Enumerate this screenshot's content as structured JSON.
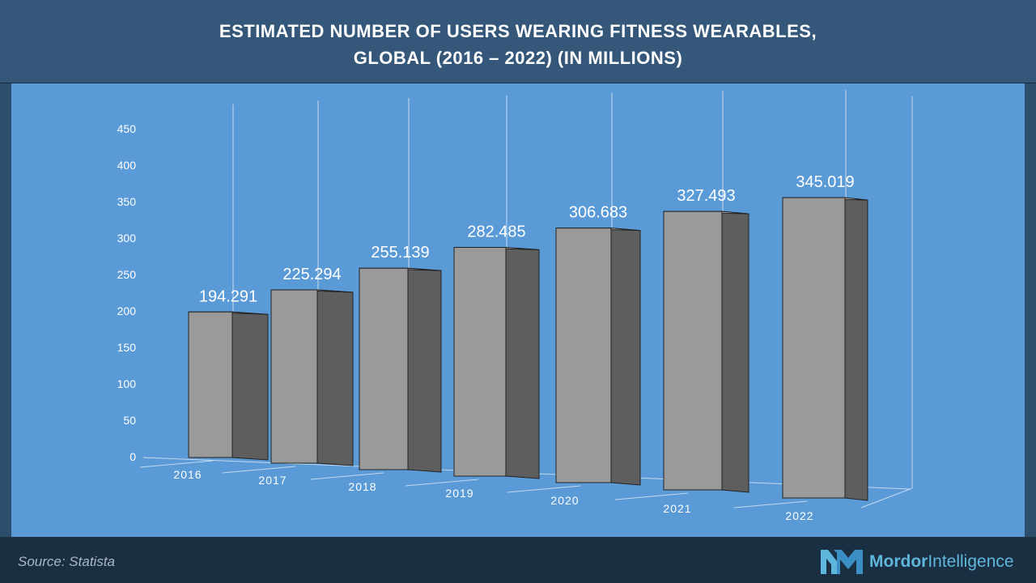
{
  "title": {
    "line1": "ESTIMATED NUMBER OF USERS WEARING FITNESS WEARABLES,",
    "line2": "GLOBAL (2016 – 2022) (IN MILLIONS)"
  },
  "footer": {
    "source": "Source: Statista",
    "brand_bold": "Mordor",
    "brand_light": "Intelligence"
  },
  "colors": {
    "plot_bg": "#5a9ad6",
    "bar_front": "#9a9a9a",
    "bar_side": "#5e5e5e",
    "bar_top": "#c4c4c4",
    "brand": "#5fb6dc"
  },
  "chart_data": {
    "type": "bar",
    "style": "3d",
    "categories": [
      "2016",
      "2017",
      "2018",
      "2019",
      "2020",
      "2021",
      "2022"
    ],
    "values": [
      194.291,
      225.294,
      255.139,
      282.485,
      306.683,
      327.493,
      345.019
    ],
    "value_labels": [
      "194.291",
      "225.294",
      "255.139",
      "282.485",
      "306.683",
      "327.493",
      "345.019"
    ],
    "ylim": [
      0,
      450
    ],
    "yticks": [
      "0",
      "50",
      "100",
      "150",
      "200",
      "250",
      "300",
      "350",
      "400",
      "450"
    ],
    "title": "ESTIMATED NUMBER OF USERS WEARING FITNESS WEARABLES, GLOBAL (2016 – 2022) (IN MILLIONS)",
    "xlabel": "",
    "ylabel": "",
    "grid": true,
    "legend": "none"
  }
}
